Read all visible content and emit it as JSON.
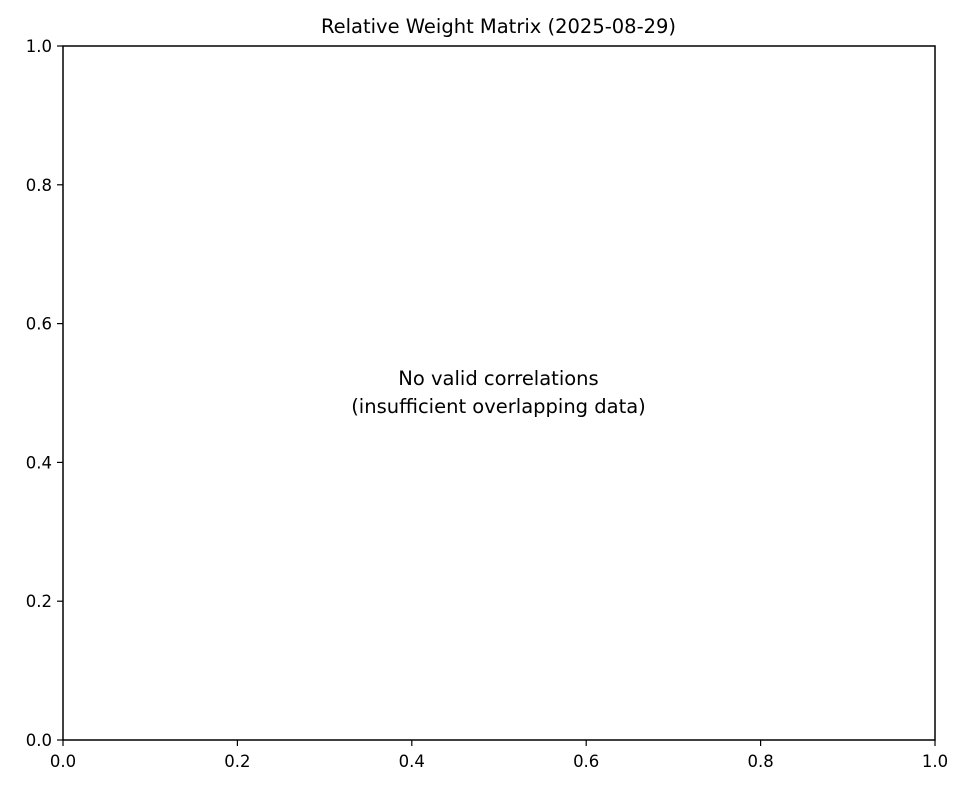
{
  "chart_data": {
    "type": "heatmap",
    "title": "Relative Weight Matrix (2025-08-29)",
    "xlabel": "",
    "ylabel": "",
    "xlim": [
      0.0,
      1.0
    ],
    "ylim": [
      0.0,
      1.0
    ],
    "x_ticks": [
      "0.0",
      "0.2",
      "0.4",
      "0.6",
      "0.8",
      "1.0"
    ],
    "y_ticks": [
      "0.0",
      "0.2",
      "0.4",
      "0.6",
      "0.8",
      "1.0"
    ],
    "x_tick_values": [
      0.0,
      0.2,
      0.4,
      0.6,
      0.8,
      1.0
    ],
    "y_tick_values": [
      0.0,
      0.2,
      0.4,
      0.6,
      0.8,
      1.0
    ],
    "grid": false,
    "values": [],
    "message_lines": [
      "No valid correlations",
      "(insufficient overlapping data)"
    ]
  }
}
